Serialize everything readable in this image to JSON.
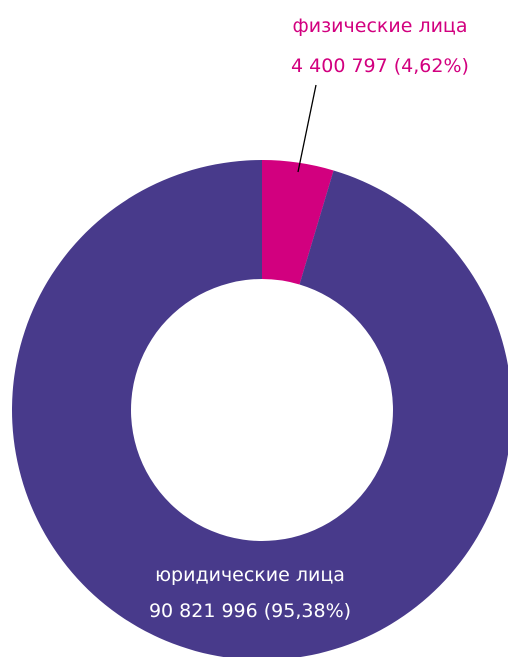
{
  "chart_data": {
    "type": "pie",
    "slices": [
      {
        "label": "физические лица",
        "value": 4400797,
        "value_label": "4 400 797 (4,62%)",
        "percent": 4.62,
        "color": "#d2007f"
      },
      {
        "label": "юридические лица",
        "value": 90821996,
        "value_label": "90 821 996 (95,38%)",
        "percent": 95.38,
        "color": "#483a8b"
      }
    ]
  }
}
